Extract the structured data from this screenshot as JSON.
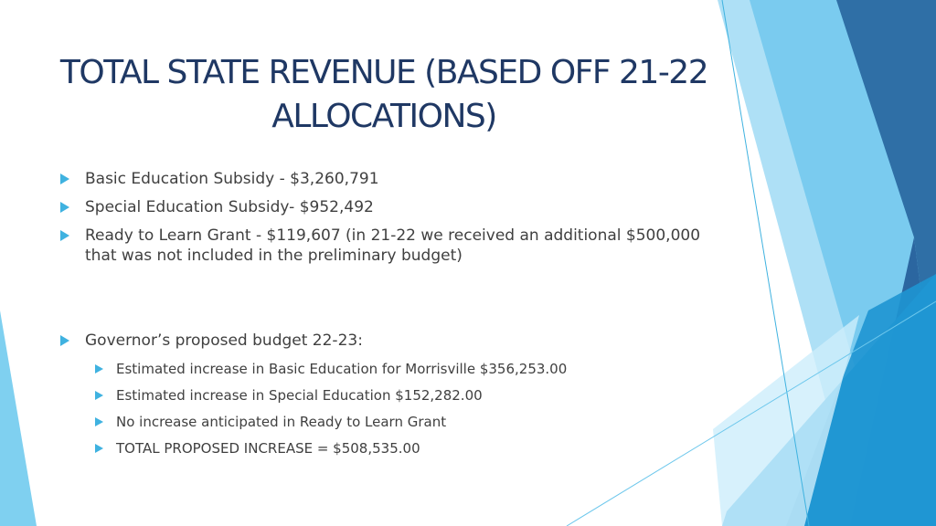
{
  "slide": {
    "title_line1": "TOTAL STATE REVENUE (BASED OFF 21-22",
    "title_line2": "ALLOCATIONS)",
    "bullets": [
      {
        "text": "Basic Education Subsidy - $3,260,791"
      },
      {
        "text": "Special Education Subsidy- $952,492"
      },
      {
        "text": "Ready to Learn Grant - $119,607 (in 21-22 we received an additional $500,000",
        "text2": "that was not included in the preliminary budget)"
      },
      {
        "text": "Governor’s proposed budget 22-23:"
      }
    ],
    "sub_bullets": [
      {
        "text": "Estimated increase in Basic Education for Morrisville $356,253.00"
      },
      {
        "text": "Estimated increase in Special Education $152,282.00"
      },
      {
        "text": "No increase anticipated in Ready to Learn Grant"
      },
      {
        "text": "TOTAL PROPOSED INCREASE = $508,535.00"
      }
    ]
  },
  "theme": {
    "title_color": "#1f3864",
    "bullet_arrow_color": "#3fb2e0",
    "accent_light": "#9fd9f3",
    "accent_mid": "#3cb0e0",
    "accent_dark": "#2a6fa8"
  }
}
